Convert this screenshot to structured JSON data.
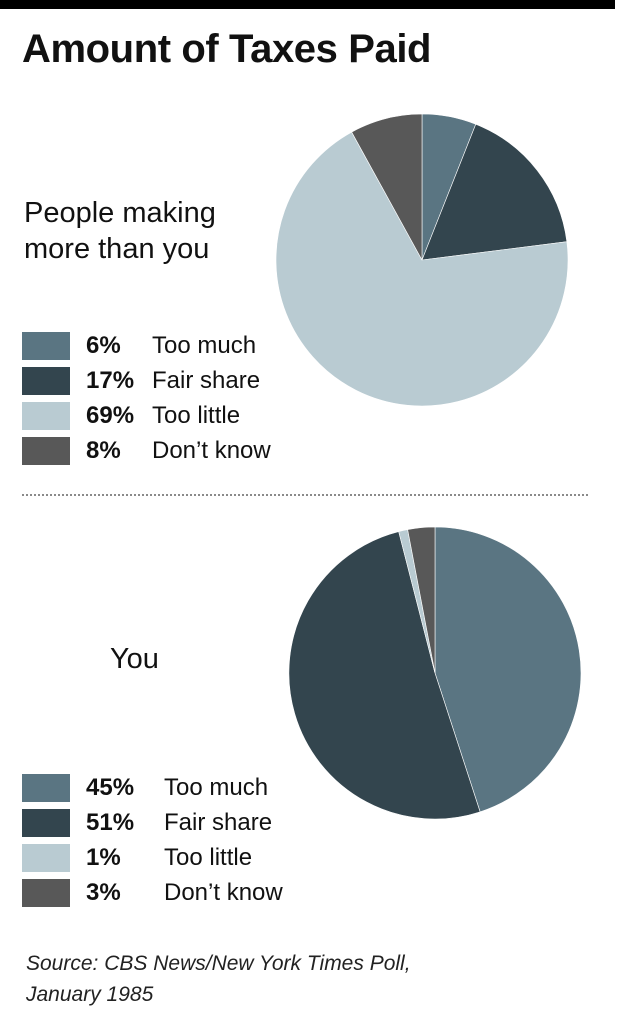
{
  "title": "Amount of Taxes Paid",
  "colors": {
    "too_much": "#5a7582",
    "fair_share": "#33454e",
    "too_little": "#b9cbd2",
    "dont_know": "#585858"
  },
  "chart_data": [
    {
      "type": "pie",
      "title": "People making more than you",
      "categories": [
        "Too much",
        "Fair share",
        "Too little",
        "Don’t know"
      ],
      "values": [
        6,
        17,
        69,
        8
      ],
      "value_labels": [
        "6%",
        "17%",
        "69%",
        "8%"
      ],
      "colors": [
        "#5a7582",
        "#33454e",
        "#b9cbd2",
        "#585858"
      ],
      "legend": "bottom-left"
    },
    {
      "type": "pie",
      "title": "You",
      "categories": [
        "Too much",
        "Fair share",
        "Too little",
        "Don’t know"
      ],
      "values": [
        45,
        51,
        1,
        3
      ],
      "value_labels": [
        "45%",
        "51%",
        "1%",
        "3%"
      ],
      "colors": [
        "#5a7582",
        "#33454e",
        "#b9cbd2",
        "#585858"
      ],
      "legend": "bottom-left"
    }
  ],
  "source": {
    "line1": "Source: CBS News/New York Times Poll,",
    "line2": "January 1985"
  }
}
